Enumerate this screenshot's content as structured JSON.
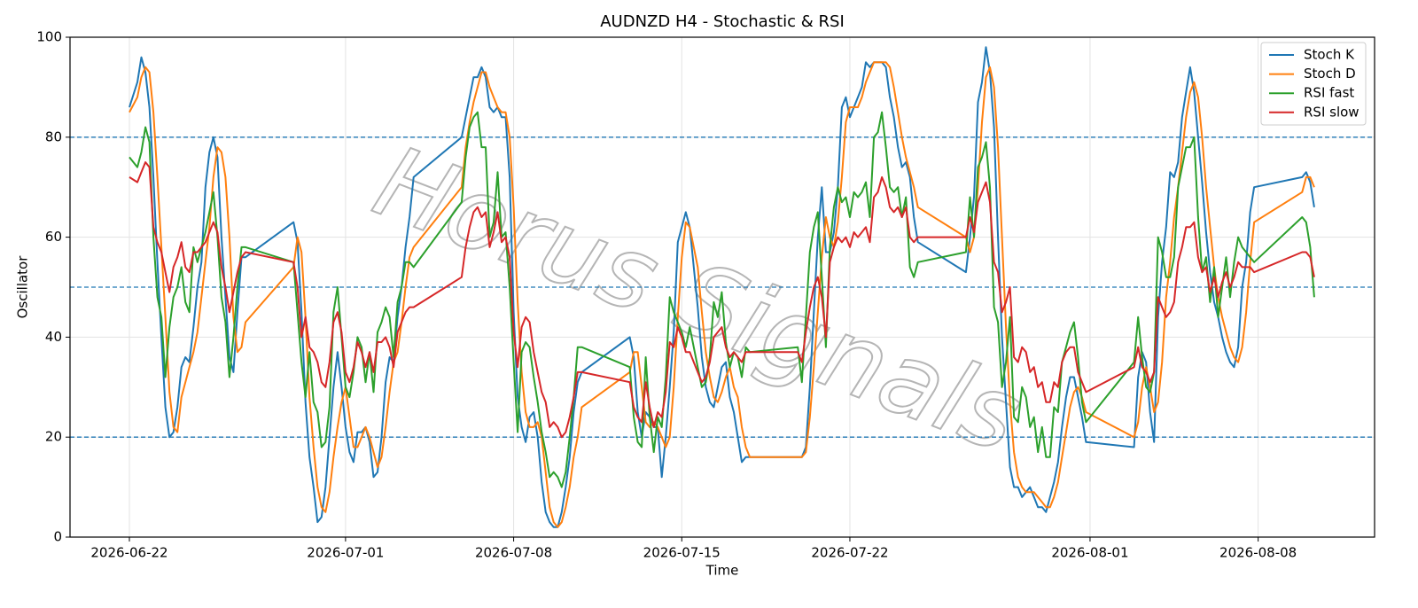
{
  "chart_data": {
    "type": "line",
    "title": "AUDNZD H4 - Stochastic & RSI",
    "xlabel": "Time",
    "ylabel": "Oscillator",
    "watermark": "Horus Signals",
    "grid": true,
    "legend": "upper right",
    "ylim": [
      0,
      100
    ],
    "yticks": [
      0,
      20,
      40,
      60,
      80,
      100
    ],
    "xlim": [
      "2026-06-19 12:40",
      "2026-08-12 20:20"
    ],
    "xticks": [
      "2026-06-22",
      "2026-07-01",
      "2026-07-08",
      "2026-07-15",
      "2026-07-22",
      "2026-08-01",
      "2026-08-08"
    ],
    "hlines": [
      80,
      50,
      20
    ],
    "hline_color": "#1f77b4",
    "x": [
      "2026-06-22 00:00",
      "2026-06-22 08:00",
      "2026-06-22 12:00",
      "2026-06-22 16:00",
      "2026-06-22 20:00",
      "2026-06-23 00:00",
      "2026-06-23 04:00",
      "2026-06-23 08:00",
      "2026-06-23 12:00",
      "2026-06-23 16:00",
      "2026-06-23 20:00",
      "2026-06-24 00:00",
      "2026-06-24 04:00",
      "2026-06-24 08:00",
      "2026-06-24 12:00",
      "2026-06-24 16:00",
      "2026-06-24 20:00",
      "2026-06-25 00:00",
      "2026-06-25 04:00",
      "2026-06-25 08:00",
      "2026-06-25 12:00",
      "2026-06-25 16:00",
      "2026-06-25 20:00",
      "2026-06-26 00:00",
      "2026-06-26 04:00",
      "2026-06-26 08:00",
      "2026-06-26 12:00",
      "2026-06-26 16:00",
      "2026-06-26 20:00",
      "2026-06-28 20:00",
      "2026-06-29 00:00",
      "2026-06-29 04:00",
      "2026-06-29 08:00",
      "2026-06-29 12:00",
      "2026-06-29 16:00",
      "2026-06-29 20:00",
      "2026-06-30 00:00",
      "2026-06-30 04:00",
      "2026-06-30 08:00",
      "2026-06-30 12:00",
      "2026-06-30 16:00",
      "2026-06-30 20:00",
      "2026-07-01 00:00",
      "2026-07-01 04:00",
      "2026-07-01 08:00",
      "2026-07-01 12:00",
      "2026-07-01 16:00",
      "2026-07-01 20:00",
      "2026-07-02 00:00",
      "2026-07-02 04:00",
      "2026-07-02 08:00",
      "2026-07-02 12:00",
      "2026-07-02 16:00",
      "2026-07-02 20:00",
      "2026-07-03 00:00",
      "2026-07-03 04:00",
      "2026-07-03 08:00",
      "2026-07-03 12:00",
      "2026-07-03 16:00",
      "2026-07-03 20:00",
      "2026-07-05 20:00",
      "2026-07-06 00:00",
      "2026-07-06 04:00",
      "2026-07-06 08:00",
      "2026-07-06 12:00",
      "2026-07-06 16:00",
      "2026-07-06 20:00",
      "2026-07-07 00:00",
      "2026-07-07 04:00",
      "2026-07-07 08:00",
      "2026-07-07 12:00",
      "2026-07-07 16:00",
      "2026-07-07 20:00",
      "2026-07-08 00:00",
      "2026-07-08 04:00",
      "2026-07-08 08:00",
      "2026-07-08 12:00",
      "2026-07-08 16:00",
      "2026-07-08 20:00",
      "2026-07-09 00:00",
      "2026-07-09 04:00",
      "2026-07-09 08:00",
      "2026-07-09 12:00",
      "2026-07-09 16:00",
      "2026-07-09 20:00",
      "2026-07-10 00:00",
      "2026-07-10 04:00",
      "2026-07-10 08:00",
      "2026-07-10 12:00",
      "2026-07-10 16:00",
      "2026-07-10 20:00",
      "2026-07-12 20:00",
      "2026-07-13 00:00",
      "2026-07-13 04:00",
      "2026-07-13 08:00",
      "2026-07-13 12:00",
      "2026-07-13 16:00",
      "2026-07-13 20:00",
      "2026-07-14 00:00",
      "2026-07-14 04:00",
      "2026-07-14 08:00",
      "2026-07-14 12:00",
      "2026-07-14 16:00",
      "2026-07-14 20:00",
      "2026-07-15 00:00",
      "2026-07-15 04:00",
      "2026-07-15 08:00",
      "2026-07-15 12:00",
      "2026-07-15 16:00",
      "2026-07-15 20:00",
      "2026-07-16 00:00",
      "2026-07-16 04:00",
      "2026-07-16 08:00",
      "2026-07-16 12:00",
      "2026-07-16 16:00",
      "2026-07-16 20:00",
      "2026-07-17 00:00",
      "2026-07-17 04:00",
      "2026-07-17 08:00",
      "2026-07-17 12:00",
      "2026-07-17 16:00",
      "2026-07-17 20:00",
      "2026-07-19 20:00",
      "2026-07-20 00:00",
      "2026-07-20 04:00",
      "2026-07-20 08:00",
      "2026-07-20 12:00",
      "2026-07-20 16:00",
      "2026-07-20 20:00",
      "2026-07-21 00:00",
      "2026-07-21 04:00",
      "2026-07-21 08:00",
      "2026-07-21 12:00",
      "2026-07-21 16:00",
      "2026-07-21 20:00",
      "2026-07-22 00:00",
      "2026-07-22 04:00",
      "2026-07-22 08:00",
      "2026-07-22 12:00",
      "2026-07-22 16:00",
      "2026-07-22 20:00",
      "2026-07-23 00:00",
      "2026-07-23 04:00",
      "2026-07-23 08:00",
      "2026-07-23 12:00",
      "2026-07-23 16:00",
      "2026-07-23 20:00",
      "2026-07-24 00:00",
      "2026-07-24 04:00",
      "2026-07-24 08:00",
      "2026-07-24 12:00",
      "2026-07-24 16:00",
      "2026-07-24 20:00",
      "2026-07-26 20:00",
      "2026-07-27 00:00",
      "2026-07-27 04:00",
      "2026-07-27 08:00",
      "2026-07-27 12:00",
      "2026-07-27 16:00",
      "2026-07-27 20:00",
      "2026-07-28 00:00",
      "2026-07-28 04:00",
      "2026-07-28 08:00",
      "2026-07-28 12:00",
      "2026-07-28 16:00",
      "2026-07-28 20:00",
      "2026-07-29 00:00",
      "2026-07-29 04:00",
      "2026-07-29 08:00",
      "2026-07-29 12:00",
      "2026-07-29 16:00",
      "2026-07-29 20:00",
      "2026-07-30 00:00",
      "2026-07-30 04:00",
      "2026-07-30 08:00",
      "2026-07-30 12:00",
      "2026-07-30 16:00",
      "2026-07-30 20:00",
      "2026-07-31 00:00",
      "2026-07-31 04:00",
      "2026-07-31 08:00",
      "2026-07-31 12:00",
      "2026-07-31 16:00",
      "2026-07-31 20:00",
      "2026-08-02 20:00",
      "2026-08-03 00:00",
      "2026-08-03 04:00",
      "2026-08-03 08:00",
      "2026-08-03 12:00",
      "2026-08-03 16:00",
      "2026-08-03 20:00",
      "2026-08-04 00:00",
      "2026-08-04 04:00",
      "2026-08-04 08:00",
      "2026-08-04 12:00",
      "2026-08-04 16:00",
      "2026-08-04 20:00",
      "2026-08-05 00:00",
      "2026-08-05 04:00",
      "2026-08-05 08:00",
      "2026-08-05 12:00",
      "2026-08-05 16:00",
      "2026-08-05 20:00",
      "2026-08-06 00:00",
      "2026-08-06 04:00",
      "2026-08-06 08:00",
      "2026-08-06 12:00",
      "2026-08-06 16:00",
      "2026-08-06 20:00",
      "2026-08-07 00:00",
      "2026-08-07 04:00",
      "2026-08-07 08:00",
      "2026-08-07 12:00",
      "2026-08-07 16:00",
      "2026-08-07 20:00",
      "2026-08-09 20:00",
      "2026-08-10 00:00",
      "2026-08-10 04:00",
      "2026-08-10 08:00"
    ],
    "series": [
      {
        "name": "Stoch K",
        "color": "#1f77b4",
        "values": [
          86,
          91,
          96,
          93,
          86,
          72,
          55,
          40,
          26,
          20,
          21,
          26,
          34,
          36,
          35,
          42,
          50,
          55,
          70,
          77,
          80,
          76,
          60,
          48,
          36,
          33,
          45,
          56,
          56,
          63,
          59,
          45,
          27,
          16,
          10,
          3,
          4,
          10,
          20,
          30,
          37,
          30,
          22,
          17,
          15,
          21,
          21,
          22,
          19,
          12,
          13,
          20,
          31,
          36,
          35,
          44,
          50,
          58,
          64,
          72,
          80,
          84,
          88,
          92,
          92,
          94,
          92,
          86,
          85,
          86,
          84,
          84,
          72,
          45,
          28,
          22,
          19,
          24,
          25,
          20,
          11,
          5,
          3,
          2,
          2,
          5,
          10,
          16,
          25,
          31,
          33,
          40,
          36,
          25,
          20,
          25,
          24,
          22,
          22,
          12,
          20,
          30,
          41,
          59,
          62,
          65,
          62,
          54,
          46,
          36,
          30,
          27,
          26,
          30,
          34,
          35,
          28,
          25,
          20,
          15,
          16,
          16,
          16,
          16,
          18,
          30,
          45,
          60,
          70,
          57,
          57,
          61,
          70,
          86,
          88,
          84,
          86,
          88,
          90,
          95,
          94,
          95,
          95,
          95,
          94,
          88,
          84,
          78,
          74,
          75,
          72,
          64,
          59,
          53,
          60,
          68,
          87,
          91,
          98,
          93,
          82,
          60,
          40,
          27,
          14,
          10,
          10,
          8,
          9,
          10,
          8,
          6,
          6,
          5,
          8,
          11,
          15,
          22,
          28,
          32,
          32,
          28,
          24,
          19,
          18,
          32,
          37,
          35,
          25,
          19,
          44,
          55,
          62,
          73,
          72,
          75,
          84,
          89,
          94,
          89,
          80,
          71,
          61,
          53,
          47,
          44,
          40,
          37,
          35,
          34,
          38,
          50,
          55,
          65,
          70,
          72,
          73,
          71,
          66
        ]
      },
      {
        "name": "Stoch D",
        "color": "#ff7f0e",
        "values": [
          85,
          88,
          92,
          94,
          93,
          85,
          72,
          58,
          44,
          29,
          22,
          21,
          28,
          31,
          34,
          37,
          41,
          48,
          55,
          62,
          72,
          78,
          77,
          72,
          60,
          44,
          37,
          38,
          43,
          54,
          60,
          57,
          44,
          28,
          18,
          10,
          6,
          5,
          9,
          16,
          22,
          27,
          30,
          24,
          18,
          18,
          20,
          22,
          20,
          17,
          14,
          16,
          22,
          29,
          35,
          37,
          43,
          50,
          56,
          58,
          70,
          78,
          83,
          87,
          90,
          93,
          93,
          90,
          88,
          86,
          85,
          85,
          80,
          66,
          47,
          33,
          25,
          22,
          22,
          23,
          20,
          13,
          6,
          3,
          2,
          3,
          6,
          10,
          16,
          20,
          26,
          33,
          37,
          37,
          30,
          23,
          22,
          23,
          22,
          20,
          18,
          20,
          30,
          44,
          56,
          63,
          62,
          58,
          54,
          45,
          37,
          32,
          28,
          27,
          29,
          32,
          34,
          30,
          28,
          22,
          18,
          16,
          16,
          16,
          17,
          24,
          34,
          45,
          56,
          64,
          60,
          58,
          63,
          72,
          83,
          86,
          86,
          86,
          88,
          91,
          93,
          95,
          95,
          95,
          95,
          94,
          90,
          85,
          80,
          76,
          73,
          70,
          66,
          60,
          57,
          60,
          70,
          83,
          92,
          94,
          90,
          78,
          60,
          42,
          27,
          17,
          12,
          10,
          9,
          9,
          9,
          8,
          7,
          6,
          6,
          8,
          11,
          16,
          21,
          26,
          29,
          30,
          28,
          25,
          20,
          23,
          30,
          34,
          30,
          25,
          27,
          35,
          48,
          55,
          64,
          70,
          77,
          84,
          89,
          91,
          88,
          80,
          70,
          62,
          54,
          48,
          44,
          41,
          38,
          36,
          35,
          38,
          45,
          55,
          63,
          69,
          72,
          72,
          70
        ]
      },
      {
        "name": "RSI fast",
        "color": "#2ca02c",
        "values": [
          76,
          74,
          77,
          82,
          79,
          60,
          48,
          44,
          32,
          42,
          48,
          50,
          54,
          47,
          45,
          58,
          55,
          58,
          61,
          65,
          69,
          60,
          48,
          43,
          32,
          40,
          50,
          58,
          58,
          55,
          45,
          35,
          28,
          37,
          27,
          25,
          18,
          19,
          26,
          45,
          50,
          40,
          30,
          28,
          33,
          40,
          38,
          31,
          37,
          29,
          41,
          43,
          46,
          44,
          36,
          47,
          50,
          55,
          55,
          54,
          67,
          76,
          82,
          84,
          85,
          78,
          78,
          60,
          63,
          73,
          60,
          61,
          50,
          35,
          21,
          37,
          39,
          38,
          32,
          27,
          21,
          17,
          12,
          13,
          12,
          10,
          13,
          20,
          28,
          38,
          38,
          34,
          24,
          19,
          18,
          36,
          24,
          17,
          24,
          22,
          32,
          48,
          45,
          43,
          41,
          38,
          42,
          38,
          34,
          30,
          31,
          36,
          47,
          44,
          49,
          39,
          34,
          37,
          36,
          32,
          38,
          37,
          38,
          31,
          44,
          57,
          62,
          65,
          52,
          38,
          58,
          66,
          70,
          67,
          68,
          64,
          69,
          68,
          69,
          71,
          64,
          80,
          81,
          85,
          78,
          70,
          69,
          70,
          64,
          68,
          54,
          52,
          55,
          57,
          68,
          60,
          74,
          76,
          79,
          70,
          46,
          43,
          30,
          35,
          44,
          24,
          23,
          30,
          28,
          22,
          24,
          17,
          22,
          16,
          16,
          26,
          25,
          35,
          38,
          41,
          43,
          36,
          27,
          23,
          35,
          44,
          36,
          30,
          29,
          33,
          60,
          57,
          52,
          52,
          56,
          70,
          74,
          78,
          78,
          80,
          64,
          53,
          56,
          47,
          54,
          44,
          50,
          56,
          48,
          55,
          60,
          58,
          57,
          56,
          55,
          64,
          63,
          58,
          48
        ]
      },
      {
        "name": "RSI slow",
        "color": "#d62728",
        "values": [
          72,
          71,
          73,
          75,
          74,
          62,
          59,
          57,
          53,
          49,
          54,
          56,
          59,
          54,
          53,
          57,
          57,
          58,
          59,
          61,
          63,
          61,
          54,
          50,
          45,
          49,
          53,
          56,
          57,
          55,
          50,
          40,
          44,
          38,
          37,
          35,
          31,
          30,
          35,
          43,
          45,
          41,
          33,
          31,
          34,
          39,
          37,
          34,
          37,
          33,
          39,
          39,
          40,
          38,
          34,
          41,
          43,
          45,
          46,
          46,
          52,
          58,
          62,
          65,
          66,
          64,
          65,
          58,
          61,
          65,
          59,
          60,
          56,
          41,
          34,
          42,
          44,
          43,
          37,
          33,
          29,
          27,
          22,
          23,
          22,
          20,
          21,
          24,
          28,
          33,
          33,
          31,
          26,
          24,
          23,
          31,
          26,
          22,
          25,
          24,
          29,
          39,
          38,
          42,
          40,
          37,
          37,
          35,
          33,
          31,
          32,
          35,
          40,
          41,
          42,
          38,
          36,
          37,
          36,
          35,
          37,
          37,
          37,
          35,
          41,
          46,
          50,
          52,
          48,
          40,
          55,
          58,
          60,
          59,
          60,
          58,
          61,
          60,
          61,
          62,
          59,
          68,
          69,
          72,
          70,
          66,
          65,
          66,
          64,
          66,
          60,
          59,
          60,
          60,
          64,
          61,
          67,
          69,
          71,
          67,
          55,
          53,
          45,
          47,
          50,
          36,
          35,
          38,
          37,
          33,
          34,
          30,
          31,
          27,
          27,
          31,
          30,
          35,
          37,
          38,
          38,
          33,
          31,
          29,
          34,
          38,
          34,
          33,
          31,
          33,
          48,
          46,
          44,
          45,
          47,
          55,
          58,
          62,
          62,
          63,
          56,
          53,
          54,
          49,
          52,
          48,
          51,
          53,
          50,
          52,
          55,
          54,
          54,
          54,
          53,
          57,
          57,
          56,
          52
        ]
      }
    ]
  }
}
